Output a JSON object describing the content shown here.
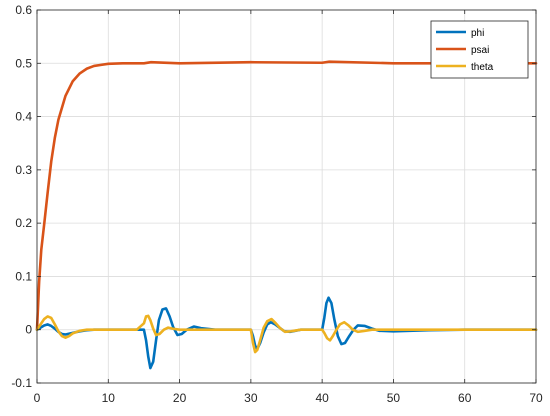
{
  "chart_data": {
    "type": "line",
    "title": "",
    "xlabel": "",
    "ylabel": "",
    "xlim": [
      0,
      70
    ],
    "ylim": [
      -0.1,
      0.6
    ],
    "xticks": [
      "0",
      "10",
      "20",
      "30",
      "40",
      "50",
      "60",
      "70"
    ],
    "yticks": [
      "-0.1",
      "0",
      "0.1",
      "0.2",
      "0.3",
      "0.4",
      "0.5",
      "0.6"
    ],
    "grid": true,
    "legend_position": "top-right",
    "series": [
      {
        "name": "phi",
        "color": "#0072BD",
        "x": [
          0,
          0.5,
          1,
          1.5,
          2,
          2.5,
          3,
          3.5,
          4,
          5,
          6,
          7,
          8,
          10,
          12,
          14,
          15,
          15.3,
          15.6,
          15.9,
          16.3,
          16.7,
          17.1,
          17.6,
          18.1,
          18.6,
          19.1,
          19.7,
          20.3,
          21,
          22,
          23,
          25,
          27,
          29,
          30,
          30.3,
          30.6,
          30.9,
          31.3,
          31.8,
          32.3,
          32.8,
          33.4,
          34,
          34.7,
          35.5,
          37,
          39,
          40,
          40.3,
          40.6,
          40.9,
          41.3,
          41.7,
          42.2,
          42.7,
          43.2,
          43.8,
          44.4,
          45,
          46,
          47,
          48,
          50,
          55,
          60,
          65,
          70
        ],
        "y": [
          0,
          0.004,
          0.008,
          0.01,
          0.007,
          0.002,
          -0.004,
          -0.008,
          -0.009,
          -0.006,
          -0.003,
          -0.001,
          0,
          0,
          0,
          0,
          0,
          -0.02,
          -0.05,
          -0.072,
          -0.06,
          -0.02,
          0.018,
          0.038,
          0.04,
          0.025,
          0.005,
          -0.01,
          -0.008,
          0,
          0.006,
          0.003,
          0,
          0,
          0,
          0,
          -0.012,
          -0.03,
          -0.036,
          -0.025,
          -0.005,
          0.01,
          0.014,
          0.01,
          0.004,
          -0.003,
          -0.004,
          0,
          0,
          0,
          0.022,
          0.05,
          0.06,
          0.05,
          0.02,
          -0.012,
          -0.027,
          -0.025,
          -0.012,
          0,
          0.008,
          0.007,
          0.002,
          -0.002,
          -0.003,
          -0.001,
          0,
          0,
          0
        ]
      },
      {
        "name": "psai",
        "color": "#D95319",
        "x": [
          0,
          0.3,
          0.6,
          1,
          1.5,
          2,
          2.5,
          3,
          4,
          5,
          6,
          7,
          8,
          9,
          10,
          12,
          15,
          16,
          20,
          30,
          40,
          41,
          50,
          60,
          70
        ],
        "y": [
          0,
          0.09,
          0.15,
          0.197,
          0.258,
          0.316,
          0.36,
          0.394,
          0.439,
          0.466,
          0.481,
          0.49,
          0.495,
          0.497,
          0.499,
          0.5,
          0.5,
          0.502,
          0.5,
          0.502,
          0.501,
          0.503,
          0.5,
          0.5,
          0.5
        ]
      },
      {
        "name": "theta",
        "color": "#EDB120",
        "x": [
          0,
          0.5,
          1,
          1.5,
          2,
          2.5,
          3,
          3.5,
          4,
          4.5,
          5,
          6,
          7,
          8,
          10,
          12,
          14,
          15,
          15.3,
          15.6,
          15.9,
          16.3,
          16.7,
          17.2,
          17.8,
          18.4,
          19,
          20,
          22,
          25,
          28,
          30,
          30.3,
          30.6,
          30.9,
          31.3,
          31.8,
          32.3,
          32.9,
          33.5,
          34.1,
          34.8,
          35.6,
          37,
          39,
          40,
          40.3,
          40.7,
          41.1,
          41.5,
          42,
          42.5,
          43.1,
          43.7,
          44.3,
          45,
          46,
          47,
          48,
          50,
          55,
          60,
          65,
          70
        ],
        "y": [
          0,
          0.01,
          0.02,
          0.025,
          0.022,
          0.01,
          -0.003,
          -0.012,
          -0.015,
          -0.012,
          -0.007,
          -0.002,
          0,
          0,
          0,
          0,
          0,
          0.012,
          0.025,
          0.026,
          0.018,
          0.002,
          -0.01,
          -0.008,
          0,
          0.004,
          0.002,
          0,
          0,
          0,
          0,
          0,
          -0.025,
          -0.042,
          -0.038,
          -0.02,
          0.004,
          0.016,
          0.02,
          0.012,
          0.003,
          -0.004,
          -0.003,
          0,
          0,
          0,
          -0.006,
          -0.016,
          -0.02,
          -0.012,
          0,
          0.01,
          0.014,
          0.008,
          0,
          -0.004,
          -0.002,
          0,
          0,
          0,
          0,
          0,
          0,
          0
        ]
      }
    ]
  }
}
